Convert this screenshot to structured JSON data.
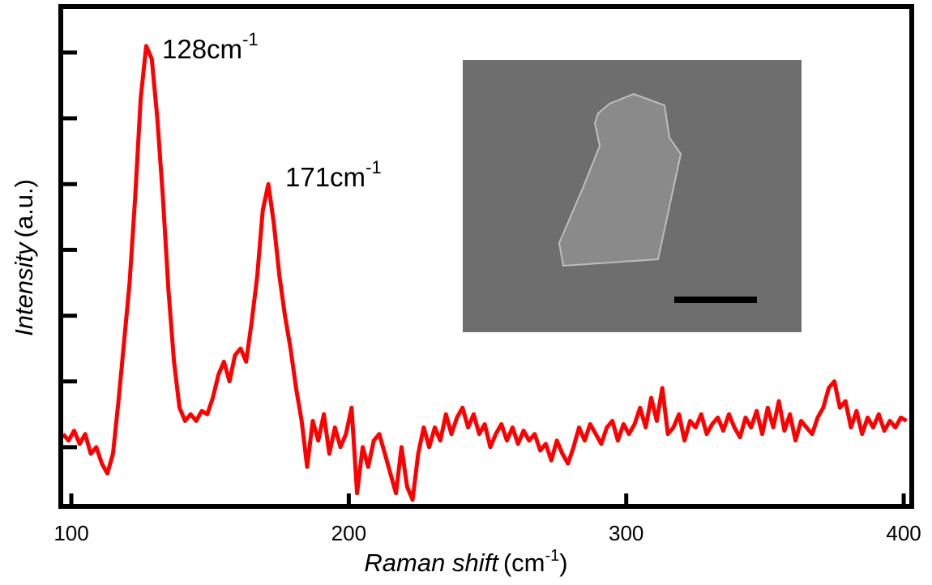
{
  "chart_data": {
    "type": "line",
    "xlabel": {
      "main": "Raman shift",
      "unit": "(cm",
      "sup": "-1",
      "close": ")"
    },
    "ylabel": {
      "main": "Intensity",
      "unit": "(a.u.)"
    },
    "annotations": [
      {
        "text": "128cm",
        "sup": "-1"
      },
      {
        "text": "171cm",
        "sup": "-1"
      }
    ],
    "color": "#ff0000",
    "xlim": [
      96.2,
      402.9
    ],
    "xticks": [
      100,
      200,
      300,
      400
    ],
    "ylim": [
      0.1,
      7.7
    ],
    "yticks": [
      1,
      2,
      3,
      4,
      5,
      6,
      7
    ],
    "x": [
      97,
      99,
      101,
      103,
      105,
      107,
      109,
      111,
      113,
      115,
      117,
      119,
      121,
      123,
      125,
      127,
      129,
      131,
      133,
      135,
      137,
      139,
      141,
      143,
      145,
      147,
      149,
      151,
      153,
      155,
      157,
      159,
      161,
      163,
      165,
      167,
      169,
      171,
      173,
      175,
      177,
      179,
      181,
      183,
      185,
      187,
      189,
      191,
      193,
      195,
      197,
      199,
      201,
      203,
      205,
      207,
      209,
      211,
      213,
      215,
      217,
      219,
      221,
      223,
      225,
      227,
      229,
      231,
      233,
      235,
      237,
      239,
      241,
      243,
      245,
      247,
      249,
      251,
      253,
      255,
      257,
      259,
      261,
      263,
      265,
      267,
      269,
      271,
      273,
      275,
      277,
      279,
      281,
      283,
      285,
      287,
      289,
      291,
      293,
      295,
      297,
      299,
      301,
      303,
      305,
      307,
      309,
      311,
      313,
      315,
      317,
      319,
      321,
      323,
      325,
      327,
      329,
      331,
      333,
      335,
      337,
      339,
      341,
      343,
      345,
      347,
      349,
      351,
      353,
      355,
      357,
      359,
      361,
      363,
      365,
      367,
      369,
      371,
      373,
      375,
      377,
      379,
      381,
      383,
      385,
      387,
      389,
      391,
      393,
      395,
      397,
      399,
      401
    ],
    "values": [
      1.2,
      1.1,
      1.25,
      1.05,
      1.2,
      0.9,
      1.0,
      0.75,
      0.6,
      0.9,
      1.7,
      2.6,
      3.5,
      4.8,
      6.3,
      7.1,
      6.9,
      6.0,
      4.8,
      3.4,
      2.3,
      1.6,
      1.4,
      1.5,
      1.4,
      1.55,
      1.5,
      1.75,
      2.1,
      2.3,
      2.0,
      2.4,
      2.5,
      2.3,
      2.9,
      3.6,
      4.6,
      5.0,
      4.4,
      3.6,
      3.0,
      2.5,
      1.9,
      1.4,
      0.7,
      1.4,
      1.1,
      1.5,
      0.9,
      1.3,
      1.0,
      1.2,
      1.6,
      0.3,
      1.0,
      0.7,
      1.1,
      1.2,
      0.9,
      0.6,
      0.3,
      1.0,
      0.4,
      0.2,
      0.9,
      1.3,
      1.0,
      1.3,
      1.1,
      1.5,
      1.2,
      1.45,
      1.6,
      1.3,
      1.5,
      1.2,
      1.35,
      1.0,
      1.2,
      1.35,
      1.1,
      1.3,
      1.05,
      1.25,
      1.1,
      1.2,
      0.95,
      1.05,
      0.8,
      1.1,
      0.9,
      0.75,
      1.0,
      1.3,
      1.1,
      1.35,
      1.2,
      1.05,
      1.3,
      1.4,
      1.1,
      1.35,
      1.2,
      1.35,
      1.6,
      1.3,
      1.75,
      1.4,
      1.9,
      1.2,
      1.3,
      1.5,
      1.1,
      1.4,
      1.3,
      1.5,
      1.2,
      1.35,
      1.45,
      1.25,
      1.5,
      1.3,
      1.15,
      1.45,
      1.3,
      1.55,
      1.2,
      1.6,
      1.3,
      1.7,
      1.25,
      1.5,
      1.1,
      1.4,
      1.3,
      1.2,
      1.45,
      1.6,
      1.9,
      2.0,
      1.6,
      1.7,
      1.3,
      1.55,
      1.2,
      1.45,
      1.3,
      1.5,
      1.25,
      1.4,
      1.3,
      1.45,
      1.4
    ]
  }
}
